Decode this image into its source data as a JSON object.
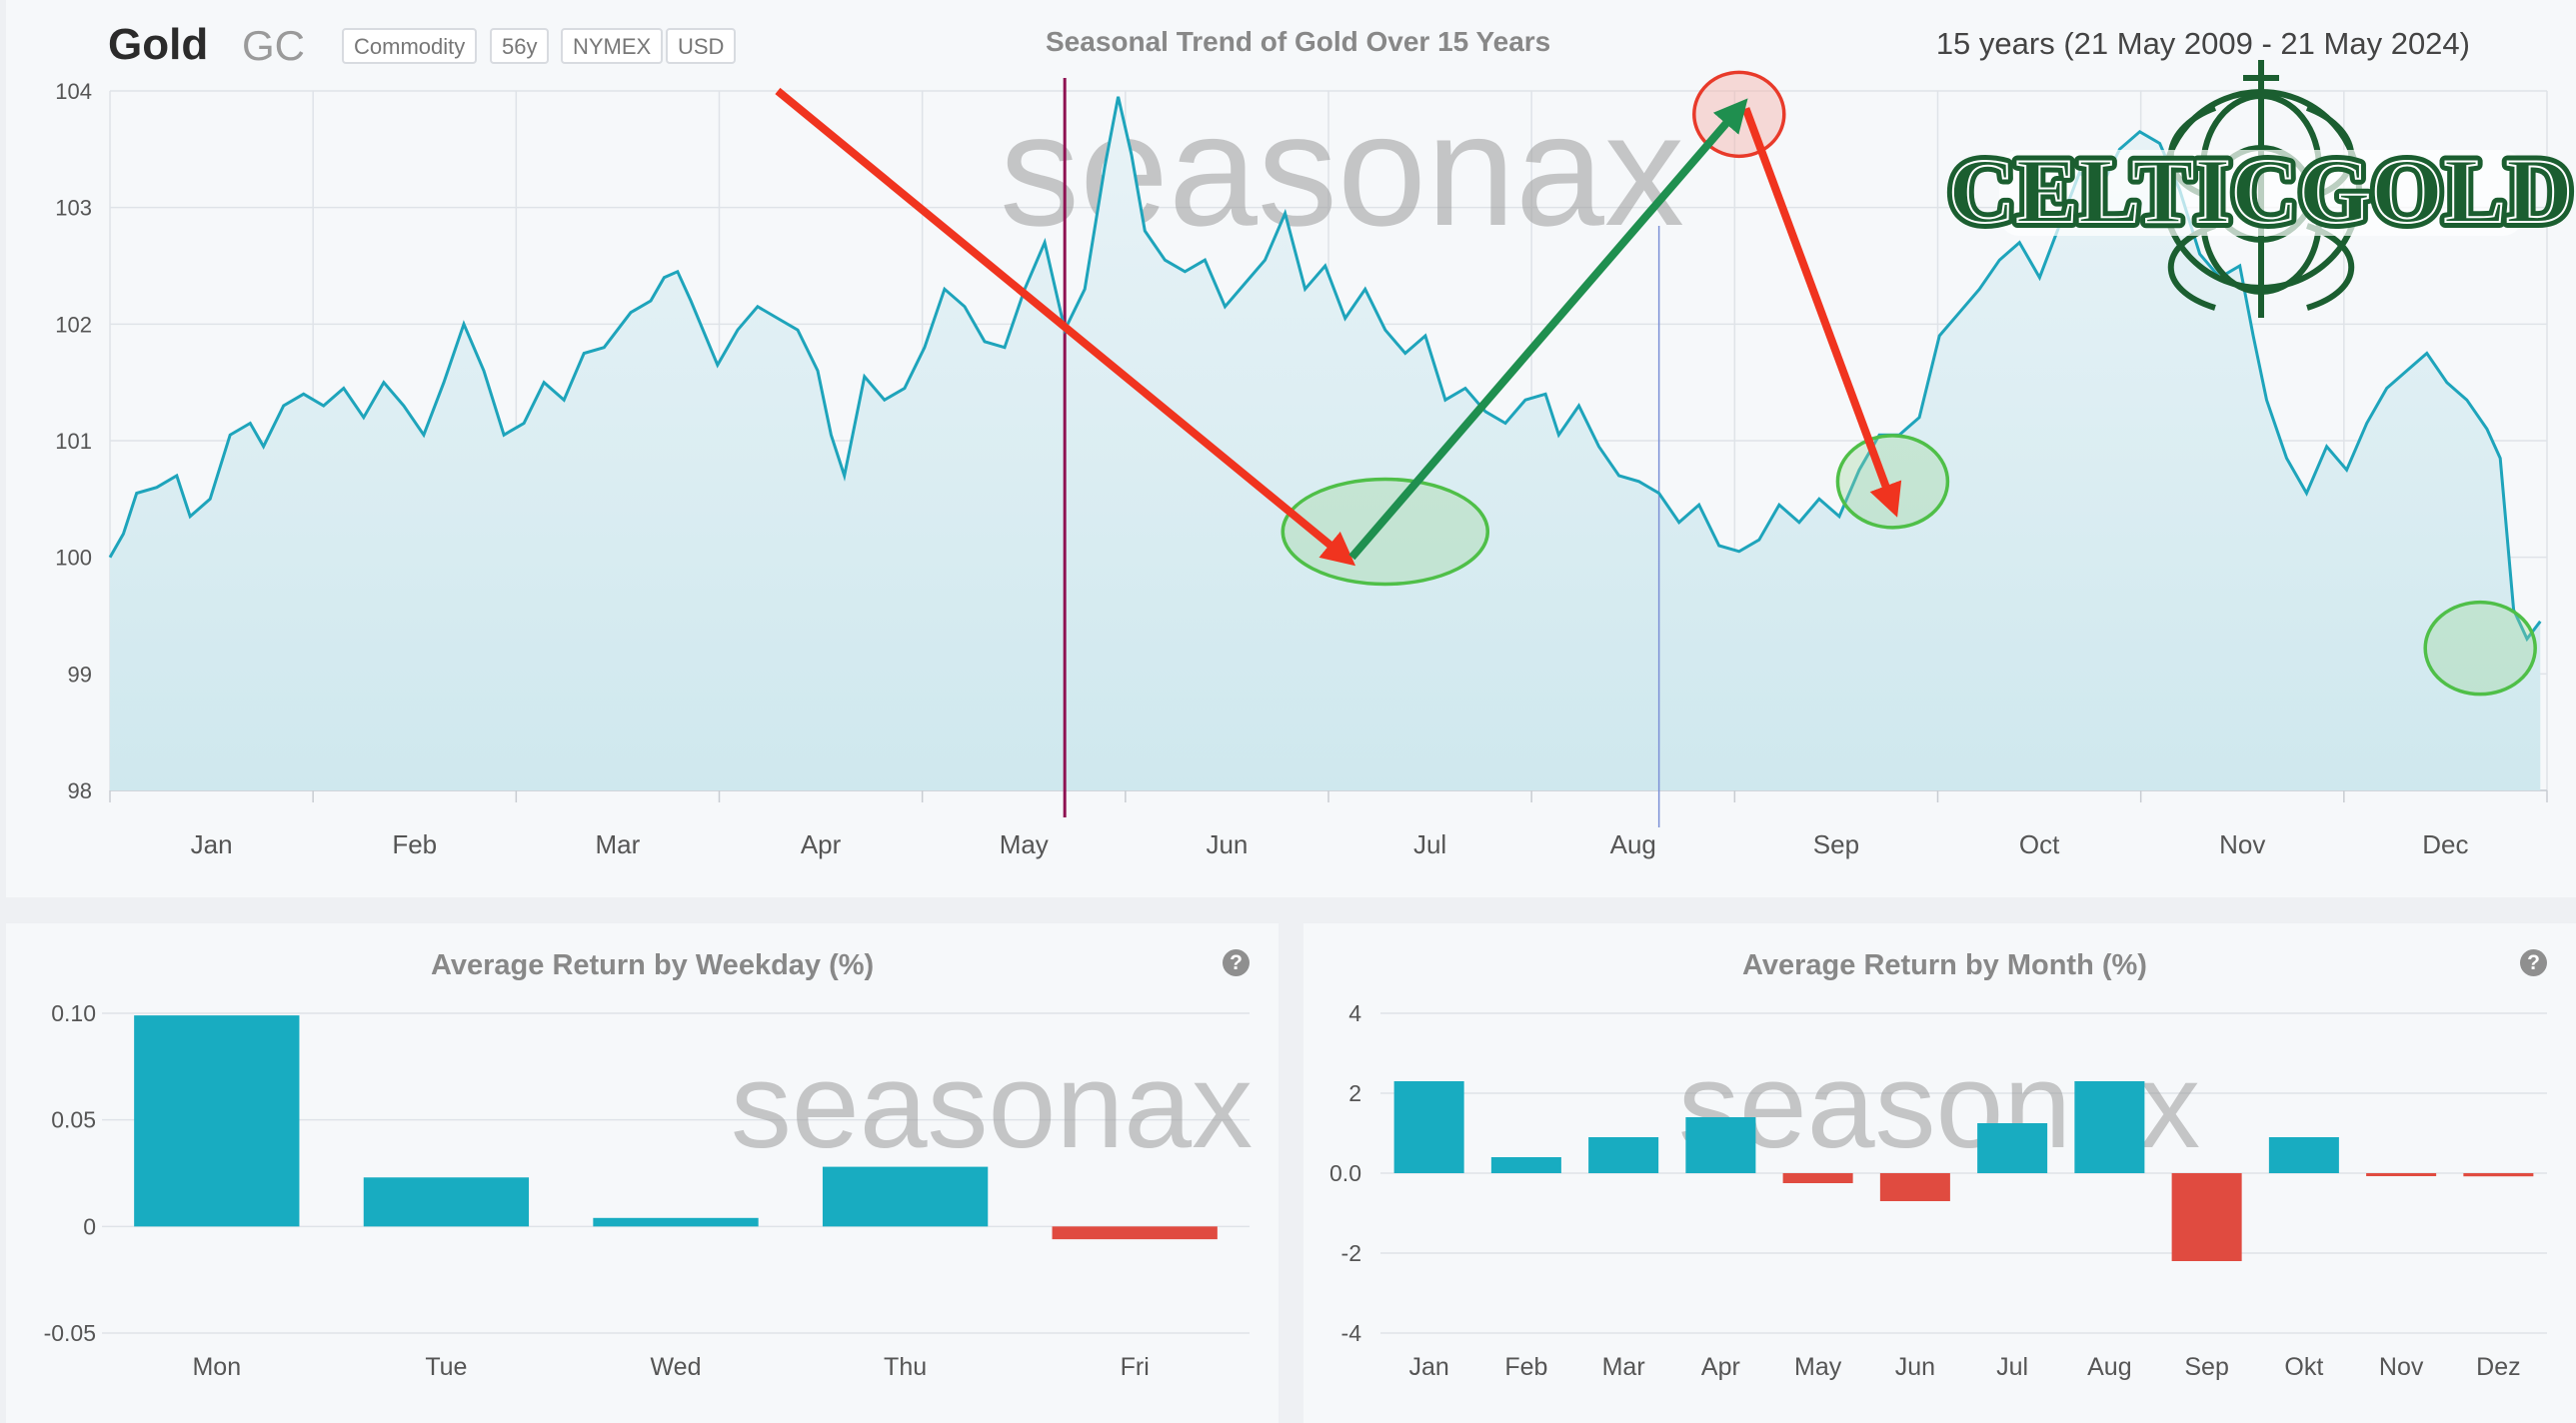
{
  "header": {
    "asset_name": "Gold",
    "asset_symbol": "GC",
    "tags": [
      "Commodity",
      "56y",
      "NYMEX",
      "USD"
    ],
    "chart_title": "Seasonal Trend of Gold Over 15 Years",
    "period": "15 years (21 May 2009 - 21 May 2024)"
  },
  "watermark": "seasonax",
  "logo_text": "CELTICGOLD",
  "colors": {
    "line": "#1ea4bb",
    "bar_positive": "#18acc1",
    "bar_negative": "#e04b40",
    "arrow_red": "#f0341f",
    "arrow_green": "#1f8f4f",
    "today_line": "#8e1152",
    "logo_green": "#1b5e30"
  },
  "chart_data": [
    {
      "type": "line",
      "title": "Seasonal Trend of Gold Over 15 Years",
      "x_ticks": [
        "Jan",
        "Feb",
        "Mar",
        "Apr",
        "May",
        "Jun",
        "Jul",
        "Aug",
        "Sep",
        "Oct",
        "Nov",
        "Dec"
      ],
      "y_ticks": [
        "98",
        "99",
        "100",
        "101",
        "102",
        "103",
        "104"
      ],
      "ylim": [
        98,
        104
      ],
      "xlim_days": [
        0,
        365
      ],
      "grid": true,
      "series": [
        {
          "points": [
            [
              0,
              100.0
            ],
            [
              2,
              100.2
            ],
            [
              4,
              100.55
            ],
            [
              7,
              100.6
            ],
            [
              10,
              100.7
            ],
            [
              12,
              100.35
            ],
            [
              15,
              100.5
            ],
            [
              18,
              101.05
            ],
            [
              21,
              101.15
            ],
            [
              23,
              100.95
            ],
            [
              26,
              101.3
            ],
            [
              29,
              101.4
            ],
            [
              32,
              101.3
            ],
            [
              35,
              101.45
            ],
            [
              38,
              101.2
            ],
            [
              41,
              101.5
            ],
            [
              44,
              101.3
            ],
            [
              47,
              101.05
            ],
            [
              50,
              101.5
            ],
            [
              53,
              102.0
            ],
            [
              56,
              101.6
            ],
            [
              59,
              101.05
            ],
            [
              62,
              101.15
            ],
            [
              65,
              101.5
            ],
            [
              68,
              101.35
            ],
            [
              71,
              101.75
            ],
            [
              74,
              101.8
            ],
            [
              78,
              102.1
            ],
            [
              81,
              102.2
            ],
            [
              83,
              102.4
            ],
            [
              85,
              102.45
            ],
            [
              87,
              102.2
            ],
            [
              91,
              101.65
            ],
            [
              94,
              101.95
            ],
            [
              97,
              102.15
            ],
            [
              100,
              102.05
            ],
            [
              103,
              101.95
            ],
            [
              106,
              101.6
            ],
            [
              108,
              101.05
            ],
            [
              110,
              100.7
            ],
            [
              113,
              101.55
            ],
            [
              116,
              101.35
            ],
            [
              119,
              101.45
            ],
            [
              122,
              101.8
            ],
            [
              125,
              102.3
            ],
            [
              128,
              102.15
            ],
            [
              131,
              101.85
            ],
            [
              134,
              101.8
            ],
            [
              137,
              102.3
            ],
            [
              140,
              102.7
            ],
            [
              143,
              101.95
            ],
            [
              146,
              102.3
            ],
            [
              149,
              103.35
            ],
            [
              151,
              103.95
            ],
            [
              153,
              103.45
            ],
            [
              155,
              102.8
            ],
            [
              158,
              102.55
            ],
            [
              161,
              102.45
            ],
            [
              164,
              102.55
            ],
            [
              167,
              102.15
            ],
            [
              170,
              102.35
            ],
            [
              173,
              102.55
            ],
            [
              176,
              102.95
            ],
            [
              179,
              102.3
            ],
            [
              182,
              102.5
            ],
            [
              185,
              102.05
            ],
            [
              188,
              102.3
            ],
            [
              191,
              101.95
            ],
            [
              194,
              101.75
            ],
            [
              197,
              101.9
            ],
            [
              200,
              101.35
            ],
            [
              203,
              101.45
            ],
            [
              206,
              101.25
            ],
            [
              209,
              101.15
            ],
            [
              212,
              101.35
            ],
            [
              215,
              101.4
            ],
            [
              217,
              101.05
            ],
            [
              220,
              101.3
            ],
            [
              223,
              100.95
            ],
            [
              226,
              100.7
            ],
            [
              229,
              100.65
            ],
            [
              232,
              100.55
            ],
            [
              235,
              100.3
            ],
            [
              238,
              100.45
            ],
            [
              241,
              100.1
            ],
            [
              244,
              100.05
            ],
            [
              247,
              100.15
            ],
            [
              250,
              100.45
            ],
            [
              253,
              100.3
            ],
            [
              256,
              100.5
            ],
            [
              259,
              100.35
            ],
            [
              262,
              100.75
            ],
            [
              265,
              101.05
            ],
            [
              268,
              101.05
            ],
            [
              271,
              101.2
            ],
            [
              274,
              101.9
            ],
            [
              277,
              102.1
            ],
            [
              280,
              102.3
            ],
            [
              283,
              102.55
            ],
            [
              286,
              102.7
            ],
            [
              289,
              102.4
            ],
            [
              292,
              102.85
            ],
            [
              295,
              103.3
            ],
            [
              298,
              103.15
            ],
            [
              301,
              103.5
            ],
            [
              304,
              103.65
            ],
            [
              307,
              103.55
            ],
            [
              310,
              103.15
            ],
            [
              313,
              102.6
            ],
            [
              316,
              102.4
            ],
            [
              319,
              102.5
            ],
            [
              321,
              101.9
            ],
            [
              323,
              101.35
            ],
            [
              326,
              100.85
            ],
            [
              329,
              100.55
            ],
            [
              332,
              100.95
            ],
            [
              335,
              100.75
            ],
            [
              338,
              101.15
            ],
            [
              341,
              101.45
            ],
            [
              344,
              101.6
            ],
            [
              347,
              101.75
            ],
            [
              350,
              101.5
            ],
            [
              353,
              101.35
            ],
            [
              356,
              101.1
            ],
            [
              358,
              100.85
            ],
            [
              360,
              99.55
            ],
            [
              362,
              99.3
            ],
            [
              364,
              99.45
            ]
          ]
        }
      ],
      "annotations": {
        "today_marker_day": 143,
        "aux_marker_day": 232,
        "red_arrows": [
          [
            [
              100,
              104.0
            ],
            [
              185,
              100.0
            ]
          ],
          [
            [
              245,
              103.85
            ],
            [
              267,
              100.45
            ]
          ]
        ],
        "green_arrow": [
          [
            186,
            100.0
          ],
          [
            244,
            103.85
          ]
        ],
        "green_circles": [
          [
            191,
            100.22
          ],
          [
            267,
            100.65
          ],
          [
            355,
            99.22
          ]
        ],
        "red_circle": [
          244,
          103.8
        ]
      }
    },
    {
      "type": "bar",
      "title": "Average Return by Weekday (%)",
      "categories": [
        "Mon",
        "Tue",
        "Wed",
        "Thu",
        "Fri"
      ],
      "values": [
        0.099,
        0.023,
        0.004,
        0.028,
        -0.006
      ],
      "y_ticks": [
        "-0.05",
        "0",
        "0.05",
        "0.10"
      ],
      "ylim": [
        -0.05,
        0.1
      ]
    },
    {
      "type": "bar",
      "title": "Average Return by Month (%)",
      "categories": [
        "Jan",
        "Feb",
        "Mar",
        "Apr",
        "May",
        "Jun",
        "Jul",
        "Aug",
        "Sep",
        "Okt",
        "Nov",
        "Dez"
      ],
      "values": [
        2.3,
        0.4,
        0.9,
        1.4,
        -0.25,
        -0.7,
        1.25,
        2.3,
        -2.2,
        0.9,
        -0.05,
        -0.08
      ],
      "y_ticks": [
        "-4",
        "-2",
        "0.0",
        "2",
        "4"
      ],
      "ylim": [
        -4,
        4
      ]
    }
  ]
}
